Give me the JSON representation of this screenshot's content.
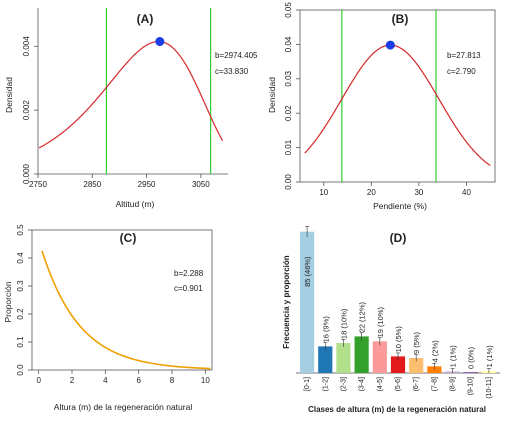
{
  "chart_data": [
    {
      "type": "line",
      "panel": "(A)",
      "xlabel": "Altitud (m)",
      "ylabel": "Densidad",
      "xlim": [
        2750,
        3100
      ],
      "ylim": [
        0,
        0.0052
      ],
      "x_ticks": [
        "2750",
        "2850",
        "2950",
        "3050"
      ],
      "y_ticks": [
        "0.000",
        "0.002",
        "0.004"
      ],
      "params": [
        "b=2974.405",
        "c=33.830"
      ],
      "curve": {
        "b": 2974.405,
        "c": 33.83,
        "scale": 0.00415,
        "color": "#d62728",
        "x_range": [
          2752,
          3090
        ]
      },
      "peak_marker": {
        "x": 2974.4,
        "y": 0.00415,
        "color": "#1a3de8"
      },
      "vertical_lines": {
        "x": [
          2876,
          3068
        ],
        "color": "#33cc33"
      }
    },
    {
      "type": "line",
      "panel": "(B)",
      "xlabel": "Pendiente (%)",
      "ylabel": "Densidad",
      "xlim": [
        5,
        46
      ],
      "ylim": [
        0,
        0.05
      ],
      "x_ticks": [
        "10",
        "20",
        "30",
        "40"
      ],
      "y_ticks": [
        "0.00",
        "0.01",
        "0.02",
        "0.03",
        "0.04",
        "0.05"
      ],
      "params": [
        "b=27.813",
        "c=2.790"
      ],
      "curve": {
        "mu": 24.0,
        "sigma": 10.2,
        "peak": 0.0398,
        "color": "#d62728",
        "x_range": [
          6,
          45
        ]
      },
      "peak_marker": {
        "x": 24.0,
        "y": 0.0398,
        "color": "#1a3de8"
      },
      "vertical_lines": {
        "x": [
          13.8,
          33.6
        ],
        "color": "#33cc33"
      }
    },
    {
      "type": "line",
      "panel": "(C)",
      "xlabel": "Altura (m) de la regeneración natural",
      "ylabel": "Proporción",
      "xlim": [
        -0.4,
        10.4
      ],
      "ylim": [
        0,
        0.5
      ],
      "x_ticks": [
        "0",
        "2",
        "4",
        "6",
        "8",
        "10"
      ],
      "y_ticks": [
        "0.0",
        "0.1",
        "0.2",
        "0.3",
        "0.4",
        "0.5"
      ],
      "params": [
        "b=2.288",
        "c=0.901"
      ],
      "curve": {
        "a": 0.465,
        "k": 0.438,
        "color": "#f0a000",
        "x_range": [
          0.2,
          10.3
        ]
      }
    },
    {
      "type": "bar",
      "panel": "(D)",
      "xlabel": "Clases de altura (m) de la regeneración natural",
      "ylabel": "Frecuencia y proporción",
      "categories": [
        "[0-1]",
        "(1-2]",
        "(2-3]",
        "(3-4]",
        "(4-5]",
        "(5-6]",
        "(6-7]",
        "(7-8]",
        "(8-9]",
        "(9-10]",
        "(10-11]"
      ],
      "values": [
        85,
        16,
        18,
        22,
        19,
        10,
        9,
        4,
        1,
        0,
        1
      ],
      "labels": [
        "85 (46%)",
        "16 (9%)",
        "18 (10%)",
        "22 (12%)",
        "19 (10%)",
        "10 (5%)",
        "9 (5%)",
        "4 (2%)",
        "1 (1%)",
        "0 (0%)",
        "1 (1%)"
      ],
      "colors": [
        "#a6cee3",
        "#1f78b4",
        "#b2df8a",
        "#33a02c",
        "#fb9a99",
        "#e31a1c",
        "#fdbf6f",
        "#ff7f00",
        "#cab2d6",
        "#6a3d9a",
        "#ffff99"
      ],
      "ylim": [
        0,
        86
      ]
    }
  ]
}
